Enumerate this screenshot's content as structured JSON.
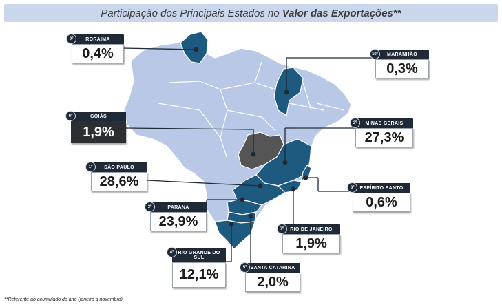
{
  "title": {
    "prefix": "Participação dos Principais Estados no",
    "emphasis": "Valor das Exportações**"
  },
  "colors": {
    "highlight": "#1e5a80",
    "goias": "#555555",
    "other": "#b8c8e6",
    "border": "#ffffff"
  },
  "states": [
    {
      "rank": "1º",
      "name": "SÃO PAULO",
      "value": "28,6%"
    },
    {
      "rank": "2º",
      "name": "MINAS GERAIS",
      "value": "27,3%"
    },
    {
      "rank": "3º",
      "name": "PARANÁ",
      "value": "23,9%"
    },
    {
      "rank": "4º",
      "name": "RIO GRANDE DO SUL",
      "value": "12,1%"
    },
    {
      "rank": "5º",
      "name": "SANTA CATARINA",
      "value": "2,0%"
    },
    {
      "rank": "6º",
      "name": "GOIÁS",
      "value": "1,9%"
    },
    {
      "rank": "7º",
      "name": "RIO DE JANEIRO",
      "value": "1,9%"
    },
    {
      "rank": "8º",
      "name": "ESPÍRITO SANTO",
      "value": "0,6%"
    },
    {
      "rank": "9º",
      "name": "RORAIMA",
      "value": "0,4%"
    },
    {
      "rank": "10º",
      "name": "MARANHÃO",
      "value": "0,3%"
    }
  ],
  "footnote": "**Referente ao acumulado do ano (janeiro a novembro)"
}
